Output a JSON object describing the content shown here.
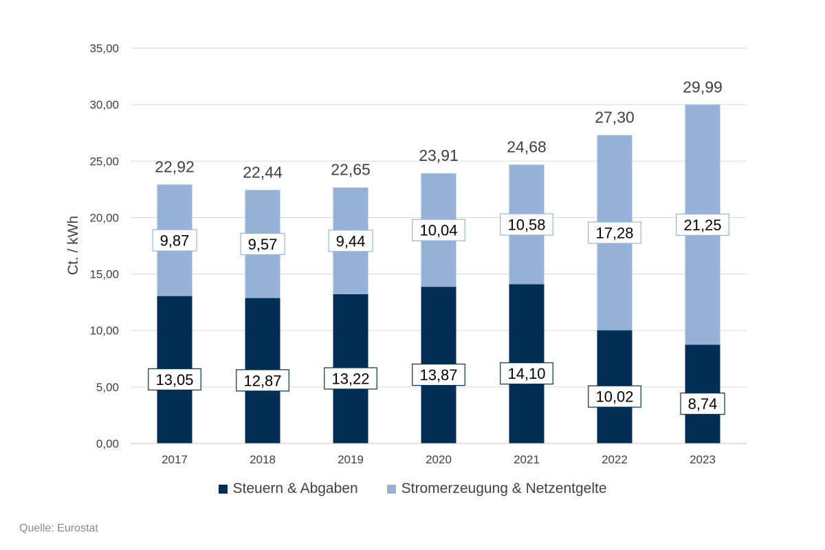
{
  "chart_data": {
    "type": "bar",
    "stacked": true,
    "categories": [
      "2017",
      "2018",
      "2019",
      "2020",
      "2021",
      "2022",
      "2023"
    ],
    "series": [
      {
        "name": "Steuern & Abgaben",
        "color": "#002e55",
        "values": [
          13.05,
          12.87,
          13.22,
          13.87,
          14.1,
          10.02,
          8.74
        ],
        "labels": [
          "13,05",
          "12,87",
          "13,22",
          "13,87",
          "14,10",
          "10,02",
          "8,74"
        ]
      },
      {
        "name": "Stromerzeugung & Netzentgelte",
        "color": "#95b3d7",
        "values": [
          9.87,
          9.57,
          9.44,
          10.04,
          10.58,
          17.28,
          21.25
        ],
        "labels": [
          "9,87",
          "9,57",
          "9,44",
          "10,04",
          "10,58",
          "17,28",
          "21,25"
        ]
      }
    ],
    "totals": [
      22.92,
      22.44,
      22.65,
      23.91,
      24.68,
      27.3,
      29.99
    ],
    "total_labels": [
      "22,92",
      "22,44",
      "22,65",
      "23,91",
      "24,68",
      "27,30",
      "29,99"
    ],
    "ylabel": "Ct. / kWh",
    "ylim": [
      0,
      35
    ],
    "yticks": [
      0,
      5,
      10,
      15,
      20,
      25,
      30,
      35
    ],
    "ytick_labels": [
      "0,00",
      "5,00",
      "10,00",
      "15,00",
      "20,00",
      "25,00",
      "30,00",
      "35,00"
    ],
    "grid": true,
    "legend_position": "bottom"
  },
  "source": "Quelle: Eurostat"
}
